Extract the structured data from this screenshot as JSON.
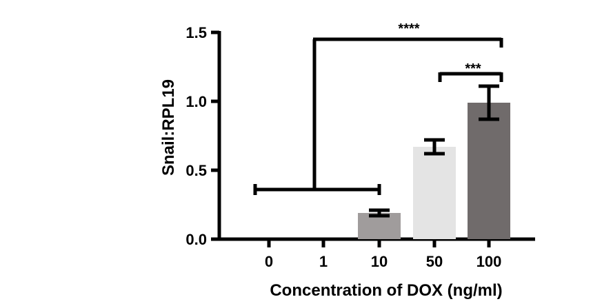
{
  "chart_data": {
    "type": "bar",
    "title": "",
    "xlabel": "Concentration of DOX (ng/ml)",
    "ylabel": "Snail:RPL19",
    "categories": [
      "0",
      "1",
      "10",
      "50",
      "100"
    ],
    "values": [
      0.0,
      0.0,
      0.19,
      0.67,
      0.99
    ],
    "errors": [
      0.0,
      0.0,
      0.02,
      0.05,
      0.12
    ],
    "bar_colors": [
      "#8a8a8a",
      "#8a8a8a",
      "#a09c9c",
      "#e4e4e4",
      "#706b6b"
    ],
    "ylim": [
      0,
      1.5
    ],
    "yticks": [
      0.0,
      0.5,
      1.0,
      1.5
    ],
    "ytick_labels": [
      "0.0",
      "0.5",
      "1.0",
      "1.5"
    ],
    "grid": false,
    "significance": [
      {
        "label": "****",
        "group_from": "0",
        "group_to": "10",
        "compare_to": "100",
        "level": 1.45
      },
      {
        "label": "***",
        "from": "50",
        "to": "100",
        "level": 1.2
      }
    ]
  }
}
